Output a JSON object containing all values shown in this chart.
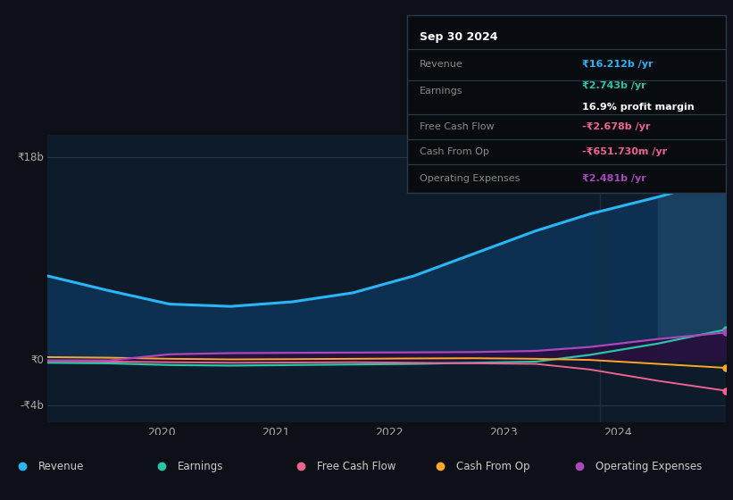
{
  "bg_color": "#0d1117",
  "plot_bg_color": "#0d1b2a",
  "grid_color": "#2a3a4a",
  "series": {
    "revenue": {
      "color": "#29b6f6",
      "fill_color": "#0d3f5e",
      "label": "Revenue",
      "values": [
        7.5,
        6.2,
        5.0,
        4.8,
        5.2,
        6.0,
        7.5,
        9.5,
        11.5,
        13.0,
        14.5,
        16.2
      ],
      "x": [
        0,
        9,
        18,
        27,
        36,
        45,
        54,
        63,
        72,
        80,
        90,
        100
      ]
    },
    "earnings": {
      "color": "#26c6a6",
      "label": "Earnings",
      "values": [
        -0.2,
        -0.25,
        -0.4,
        -0.45,
        -0.4,
        -0.35,
        -0.3,
        -0.2,
        -0.1,
        0.5,
        1.5,
        2.743
      ],
      "x": [
        0,
        9,
        18,
        27,
        36,
        45,
        54,
        63,
        72,
        80,
        90,
        100
      ]
    },
    "free_cash_flow": {
      "color": "#f06292",
      "label": "Free Cash Flow",
      "values": [
        -0.05,
        -0.1,
        -0.15,
        -0.2,
        -0.18,
        -0.15,
        -0.2,
        -0.25,
        -0.3,
        -0.8,
        -1.8,
        -2.678
      ],
      "x": [
        0,
        9,
        18,
        27,
        36,
        45,
        54,
        63,
        72,
        80,
        90,
        100
      ]
    },
    "cash_from_op": {
      "color": "#ffa726",
      "label": "Cash From Op",
      "values": [
        0.3,
        0.25,
        0.15,
        0.1,
        0.12,
        0.15,
        0.18,
        0.2,
        0.15,
        0.05,
        -0.3,
        -0.6518
      ],
      "x": [
        0,
        9,
        18,
        27,
        36,
        45,
        54,
        63,
        72,
        80,
        90,
        100
      ]
    },
    "operating_expenses": {
      "color": "#ab47bc",
      "fill_color": "#2a0d3e",
      "label": "Operating Expenses",
      "values": [
        0.0,
        0.0,
        0.55,
        0.65,
        0.68,
        0.7,
        0.72,
        0.75,
        0.85,
        1.2,
        1.9,
        2.481
      ],
      "x": [
        0,
        9,
        18,
        27,
        36,
        45,
        54,
        63,
        72,
        80,
        90,
        100
      ]
    }
  },
  "legend": {
    "revenue_color": "#29b6f6",
    "earnings_color": "#26c6a6",
    "free_cash_flow_color": "#f06292",
    "cash_from_op_color": "#ffa726",
    "operating_expenses_color": "#ab47bc"
  },
  "info_box": {
    "date": "Sep 30 2024",
    "revenue_label": "Revenue",
    "revenue_val": "₹16.212b /yr",
    "earnings_label": "Earnings",
    "earnings_val": "₹2.743b /yr",
    "profit_margin": "16.9% profit margin",
    "fcf_label": "Free Cash Flow",
    "fcf_val": "-₹2.678b /yr",
    "cop_label": "Cash From Op",
    "cop_val": "-₹651.730m /yr",
    "opex_label": "Operating Expenses",
    "opex_val": "₹2.481b /yr"
  },
  "info_colors": {
    "revenue_val": "#29b6f6",
    "earnings_val": "#26c6a6",
    "fcf_val": "#f06292",
    "cop_val": "#f06292",
    "opex_val": "#ab47bc"
  },
  "ylim": [
    -5.5,
    20
  ],
  "y_labels": [
    {
      "text": "₹18b",
      "val": 18
    },
    {
      "text": "₹0",
      "val": 0
    },
    {
      "text": "-₹4b",
      "val": -4
    }
  ],
  "x_ticks": [
    2020,
    2021,
    2022,
    2023,
    2024
  ]
}
